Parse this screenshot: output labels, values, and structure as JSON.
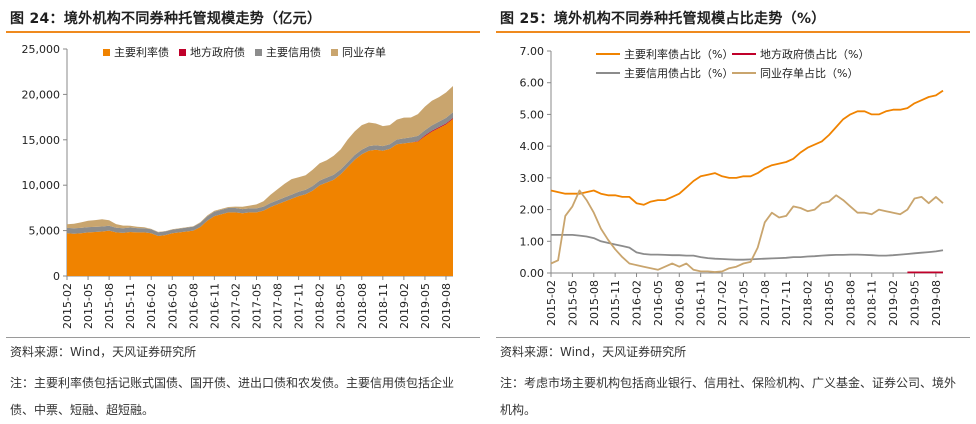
{
  "left": {
    "title": "图 24：境外机构不同券种托管规模走势（亿元）",
    "source": "资料来源：Wind，天风证券研究所",
    "note": "注：主要利率债包括记账式国债、国开债、进出口债和农发债。主要信用债包括企业债、中票、短融、超短融。"
  },
  "right": {
    "title": "图 25：境外机构不同券种托管规模占比走势（%）",
    "source": "资料来源：Wind，天风证券研究所",
    "note": "注：考虑市场主要机构包括商业银行、信用社、保险机构、广义基金、证券公司、境外机构。"
  },
  "chart_data": [
    {
      "type": "area",
      "stacked": true,
      "title": "境外机构不同券种托管规模走势（亿元）",
      "ylim": [
        0,
        25000
      ],
      "yticks": [
        0,
        5000,
        10000,
        15000,
        20000,
        25000
      ],
      "ytick_labels": [
        "0",
        "5,000",
        "10,000",
        "15,000",
        "20,000",
        "25,000"
      ],
      "xtick_labels": [
        "2015-02",
        "2015-05",
        "2015-08",
        "2015-11",
        "2016-02",
        "2016-05",
        "2016-08",
        "2016-11",
        "2017-02",
        "2017-05",
        "2017-08",
        "2017-11",
        "2018-02",
        "2018-05",
        "2018-08",
        "2018-11",
        "2019-02",
        "2019-05",
        "2019-08"
      ],
      "legend": [
        "主要利率债",
        "地方政府债",
        "主要信用债",
        "同业存单"
      ],
      "colors": [
        "#f08300",
        "#c0002a",
        "#8c8c8c",
        "#c9a56e"
      ],
      "series": [
        {
          "name": "主要利率债",
          "values": [
            4700,
            4650,
            4700,
            4800,
            4850,
            4900,
            5000,
            4800,
            4750,
            4850,
            4800,
            4800,
            4700,
            4400,
            4500,
            4700,
            4800,
            4900,
            5000,
            5400,
            6100,
            6600,
            6800,
            7000,
            7000,
            6900,
            7000,
            7000,
            7200,
            7600,
            7900,
            8200,
            8500,
            8800,
            9000,
            9400,
            10000,
            10300,
            10600,
            11200,
            12000,
            12800,
            13400,
            13800,
            13900,
            13800,
            14000,
            14500,
            14600,
            14700,
            14800,
            15400,
            15900,
            16300,
            16700,
            17300
          ]
        },
        {
          "name": "地方政府债",
          "values": [
            0,
            0,
            0,
            0,
            0,
            0,
            0,
            0,
            0,
            0,
            0,
            0,
            0,
            0,
            0,
            0,
            0,
            0,
            0,
            0,
            0,
            0,
            0,
            0,
            0,
            0,
            0,
            0,
            0,
            0,
            0,
            0,
            0,
            0,
            0,
            0,
            0,
            0,
            0,
            0,
            0,
            0,
            0,
            0,
            0,
            0,
            0,
            0,
            0,
            0,
            60,
            80,
            100,
            100,
            100,
            100
          ]
        },
        {
          "name": "主要信用债",
          "values": [
            600,
            600,
            600,
            580,
            560,
            550,
            540,
            520,
            500,
            490,
            480,
            460,
            440,
            420,
            410,
            410,
            420,
            430,
            440,
            450,
            470,
            490,
            500,
            500,
            490,
            470,
            450,
            440,
            440,
            440,
            450,
            460,
            470,
            480,
            490,
            510,
            520,
            540,
            540,
            540,
            530,
            530,
            520,
            510,
            500,
            510,
            520,
            530,
            550,
            560,
            570,
            580,
            590,
            600,
            610,
            630
          ]
        },
        {
          "name": "同业存单",
          "values": [
            400,
            500,
            600,
            700,
            750,
            800,
            600,
            400,
            300,
            200,
            150,
            100,
            50,
            40,
            40,
            40,
            40,
            30,
            40,
            80,
            100,
            100,
            90,
            100,
            150,
            250,
            300,
            450,
            600,
            900,
            1200,
            1500,
            1700,
            1600,
            1600,
            1800,
            1900,
            1900,
            2100,
            2200,
            2500,
            2600,
            2700,
            2600,
            2400,
            2200,
            2100,
            2200,
            2300,
            2200,
            2400,
            2600,
            2700,
            2700,
            2800,
            2900
          ]
        }
      ]
    },
    {
      "type": "line",
      "title": "境外机构不同券种托管规模占比走势（%）",
      "ylim": [
        0,
        7
      ],
      "yticks": [
        0,
        1,
        2,
        3,
        4,
        5,
        6,
        7
      ],
      "ytick_labels": [
        "0.00",
        "1.00",
        "2.00",
        "3.00",
        "4.00",
        "5.00",
        "6.00",
        "7.00"
      ],
      "xtick_labels": [
        "2015-02",
        "2015-05",
        "2015-08",
        "2015-11",
        "2016-02",
        "2016-05",
        "2016-08",
        "2016-11",
        "2017-02",
        "2017-05",
        "2017-08",
        "2017-11",
        "2018-02",
        "2018-05",
        "2018-08",
        "2018-11",
        "2019-02",
        "2019-05",
        "2019-08"
      ],
      "legend": [
        "主要利率债占比（%）",
        "地方政府债占比（%）",
        "主要信用债占比（%）",
        "同业存单占比（%）"
      ],
      "colors": [
        "#f08300",
        "#c0002a",
        "#8c8c8c",
        "#c9a56e"
      ],
      "series": [
        {
          "name": "主要利率债占比（%）",
          "values": [
            2.6,
            2.55,
            2.5,
            2.5,
            2.5,
            2.55,
            2.6,
            2.5,
            2.45,
            2.45,
            2.4,
            2.4,
            2.2,
            2.15,
            2.25,
            2.3,
            2.3,
            2.4,
            2.5,
            2.7,
            2.9,
            3.05,
            3.1,
            3.15,
            3.05,
            3.0,
            3.0,
            3.05,
            3.05,
            3.15,
            3.3,
            3.4,
            3.45,
            3.5,
            3.6,
            3.8,
            3.95,
            4.05,
            4.15,
            4.35,
            4.6,
            4.85,
            5.0,
            5.1,
            5.1,
            5.0,
            5.0,
            5.1,
            5.15,
            5.15,
            5.2,
            5.35,
            5.45,
            5.55,
            5.6,
            5.75
          ]
        },
        {
          "name": "地方政府债占比（%）",
          "values": [
            null,
            null,
            null,
            null,
            null,
            null,
            null,
            null,
            null,
            null,
            null,
            null,
            null,
            null,
            null,
            null,
            null,
            null,
            null,
            null,
            null,
            null,
            null,
            null,
            null,
            null,
            null,
            null,
            null,
            null,
            null,
            null,
            null,
            null,
            null,
            null,
            null,
            null,
            null,
            null,
            null,
            null,
            null,
            null,
            null,
            null,
            null,
            null,
            null,
            null,
            0.02,
            0.02,
            0.02,
            0.02,
            0.02,
            0.02
          ]
        },
        {
          "name": "主要信用债占比（%）",
          "values": [
            1.2,
            1.2,
            1.2,
            1.2,
            1.18,
            1.15,
            1.1,
            1.0,
            0.95,
            0.9,
            0.85,
            0.8,
            0.65,
            0.6,
            0.58,
            0.58,
            0.57,
            0.56,
            0.56,
            0.55,
            0.55,
            0.5,
            0.47,
            0.45,
            0.44,
            0.43,
            0.42,
            0.42,
            0.43,
            0.44,
            0.45,
            0.46,
            0.47,
            0.48,
            0.5,
            0.5,
            0.52,
            0.53,
            0.55,
            0.56,
            0.57,
            0.57,
            0.58,
            0.58,
            0.57,
            0.56,
            0.55,
            0.55,
            0.56,
            0.58,
            0.6,
            0.62,
            0.64,
            0.66,
            0.68,
            0.72
          ]
        },
        {
          "name": "同业存单占比（%）",
          "values": [
            0.3,
            0.4,
            1.8,
            2.1,
            2.6,
            2.3,
            1.9,
            1.4,
            1.05,
            0.75,
            0.5,
            0.3,
            0.25,
            0.2,
            0.15,
            0.1,
            0.2,
            0.3,
            0.2,
            0.3,
            0.1,
            0.05,
            0.05,
            0.03,
            0.05,
            0.15,
            0.2,
            0.3,
            0.35,
            0.8,
            1.6,
            1.9,
            1.75,
            1.8,
            2.1,
            2.05,
            1.95,
            2.0,
            2.2,
            2.25,
            2.45,
            2.3,
            2.1,
            1.9,
            1.9,
            1.85,
            2.0,
            1.95,
            1.9,
            1.85,
            2.0,
            2.35,
            2.4,
            2.2,
            2.4,
            2.2
          ]
        }
      ]
    }
  ]
}
